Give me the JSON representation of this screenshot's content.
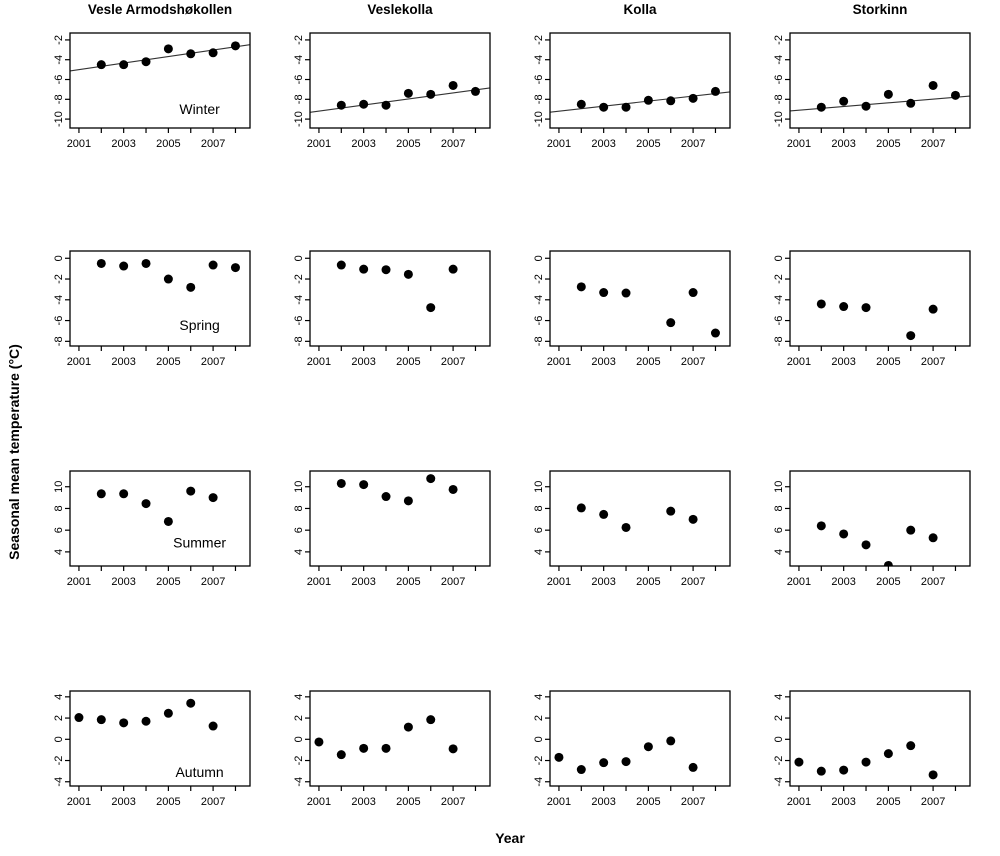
{
  "figure": {
    "xlabel": "Year",
    "ylabel": "Seasonal mean temperature (°C)"
  },
  "chart_data": {
    "type": "scatter",
    "layout": "4x4 small-multiples grid; columns are sites, rows are seasons; black filled points; regression lines in Winter row only",
    "point_color": "#000000",
    "trend_color": "#333333",
    "columns": [
      "Vesle Armodshøkollen",
      "Veslekolla",
      "Kolla",
      "Storkinn"
    ],
    "rows": [
      "Winter",
      "Spring",
      "Summer",
      "Autumn"
    ],
    "xlim": [
      2000.6,
      2008.65
    ],
    "x_ticks": [
      2001,
      2002,
      2003,
      2004,
      2005,
      2006,
      2007,
      2008
    ],
    "x_labeled_ticks": [
      2001,
      2003,
      2005,
      2007
    ],
    "x_tick_labels": [
      "2001",
      "2003",
      "2005",
      "2007"
    ],
    "row_axes": [
      {
        "season": "Winter",
        "ylim": [
          -10.9,
          -1.3
        ],
        "yticks": [
          -10,
          -8,
          -6,
          -4,
          -2
        ],
        "ytick_labels": [
          "-10",
          "-8",
          "-6",
          "-4",
          "-2"
        ]
      },
      {
        "season": "Spring",
        "ylim": [
          -8.45,
          0.7
        ],
        "yticks": [
          -8,
          -6,
          -4,
          -2,
          0
        ],
        "ytick_labels": [
          "-8",
          "-6",
          "-4",
          "-2",
          "0"
        ]
      },
      {
        "season": "Summer",
        "ylim": [
          2.7,
          11.45
        ],
        "yticks": [
          4,
          6,
          8,
          10
        ],
        "ytick_labels": [
          "4",
          "6",
          "8",
          "10"
        ]
      },
      {
        "season": "Autumn",
        "ylim": [
          -4.4,
          4.55
        ],
        "yticks": [
          -4,
          -2,
          0,
          2,
          4
        ],
        "ytick_labels": [
          "-4",
          "-2",
          "0",
          "2",
          "4"
        ]
      }
    ],
    "season_label_positions": [
      {
        "fx": 0.72,
        "fy": 0.8
      },
      {
        "fx": 0.72,
        "fy": 0.78
      },
      {
        "fx": 0.72,
        "fy": 0.75
      },
      {
        "fx": 0.72,
        "fy": 0.85
      }
    ],
    "panels": [
      {
        "season": "Winter",
        "site": "Vesle Armodshøkollen",
        "season_label": "Winter",
        "x": [
          2002,
          2003,
          2004,
          2005,
          2006,
          2007,
          2008
        ],
        "y": [
          -4.5,
          -4.5,
          -4.2,
          -2.9,
          -3.4,
          -3.3,
          -2.6
        ],
        "trend": {
          "x1": 2000.6,
          "y1": -5.13,
          "x2": 2008.65,
          "y2": -2.48
        }
      },
      {
        "season": "Winter",
        "site": "Veslekolla",
        "season_label": null,
        "x": [
          2002,
          2003,
          2004,
          2005,
          2006,
          2007,
          2008
        ],
        "y": [
          -8.6,
          -8.5,
          -8.6,
          -7.4,
          -7.5,
          -6.6,
          -7.2
        ],
        "trend": {
          "x1": 2000.6,
          "y1": -9.32,
          "x2": 2008.65,
          "y2": -6.85
        }
      },
      {
        "season": "Winter",
        "site": "Kolla",
        "season_label": null,
        "x": [
          2002,
          2003,
          2004,
          2005,
          2006,
          2007,
          2008
        ],
        "y": [
          -8.5,
          -8.8,
          -8.8,
          -8.1,
          -8.15,
          -7.9,
          -7.2
        ],
        "trend": {
          "x1": 2000.6,
          "y1": -9.3,
          "x2": 2008.65,
          "y2": -7.26
        }
      },
      {
        "season": "Winter",
        "site": "Storkinn",
        "season_label": null,
        "x": [
          2002,
          2003,
          2004,
          2005,
          2006,
          2007,
          2008
        ],
        "y": [
          -8.8,
          -8.2,
          -8.7,
          -7.5,
          -8.4,
          -6.6,
          -7.6
        ],
        "trend": {
          "x1": 2000.6,
          "y1": -9.18,
          "x2": 2008.65,
          "y2": -7.67
        }
      },
      {
        "season": "Spring",
        "site": "Vesle Armodshøkollen",
        "season_label": "Spring",
        "x": [
          2002,
          2003,
          2004,
          2005,
          2006,
          2007,
          2008
        ],
        "y": [
          -0.5,
          -0.75,
          -0.5,
          -2.0,
          -2.8,
          -0.65,
          -0.9
        ],
        "trend": null
      },
      {
        "season": "Spring",
        "site": "Veslekolla",
        "season_label": null,
        "x": [
          2002,
          2003,
          2004,
          2005,
          2006,
          2007
        ],
        "y": [
          -0.65,
          -1.05,
          -1.1,
          -1.55,
          -4.75,
          -1.05
        ],
        "trend": null
      },
      {
        "season": "Spring",
        "site": "Kolla",
        "season_label": null,
        "x": [
          2002,
          2003,
          2004,
          2006,
          2007,
          2008
        ],
        "y": [
          -2.75,
          -3.3,
          -3.35,
          -6.2,
          -3.3,
          -7.2
        ],
        "trend": null
      },
      {
        "season": "Spring",
        "site": "Storkinn",
        "season_label": null,
        "x": [
          2002,
          2003,
          2004,
          2006,
          2007
        ],
        "y": [
          -4.4,
          -4.65,
          -4.75,
          -7.45,
          -4.9
        ],
        "trend": null
      },
      {
        "season": "Summer",
        "site": "Vesle Armodshøkollen",
        "season_label": "Summer",
        "x": [
          2002,
          2003,
          2004,
          2005,
          2006,
          2007
        ],
        "y": [
          9.35,
          9.35,
          8.45,
          6.8,
          9.6,
          9.0
        ],
        "trend": null
      },
      {
        "season": "Summer",
        "site": "Veslekolla",
        "season_label": null,
        "x": [
          2002,
          2003,
          2004,
          2005,
          2006,
          2007
        ],
        "y": [
          10.3,
          10.2,
          9.1,
          8.7,
          10.75,
          9.75
        ],
        "trend": null
      },
      {
        "season": "Summer",
        "site": "Kolla",
        "season_label": null,
        "x": [
          2002,
          2003,
          2004,
          2006,
          2007
        ],
        "y": [
          8.05,
          7.45,
          6.25,
          7.75,
          7.0
        ],
        "trend": null
      },
      {
        "season": "Summer",
        "site": "Storkinn",
        "season_label": null,
        "x": [
          2002,
          2003,
          2004,
          2005,
          2006,
          2007
        ],
        "y": [
          6.4,
          5.65,
          4.65,
          2.75,
          6.0,
          5.3
        ],
        "trend": null
      },
      {
        "season": "Autumn",
        "site": "Vesle Armodshøkollen",
        "season_label": "Autumn",
        "x": [
          2001,
          2002,
          2003,
          2004,
          2005,
          2006,
          2007
        ],
        "y": [
          2.05,
          1.85,
          1.55,
          1.7,
          2.45,
          3.4,
          1.25
        ],
        "trend": null
      },
      {
        "season": "Autumn",
        "site": "Veslekolla",
        "season_label": null,
        "x": [
          2001,
          2002,
          2003,
          2004,
          2005,
          2006,
          2007
        ],
        "y": [
          -0.25,
          -1.45,
          -0.85,
          -0.85,
          1.15,
          1.85,
          -0.9
        ],
        "trend": null
      },
      {
        "season": "Autumn",
        "site": "Kolla",
        "season_label": null,
        "x": [
          2001,
          2002,
          2003,
          2004,
          2005,
          2006,
          2007
        ],
        "y": [
          -1.7,
          -2.85,
          -2.2,
          -2.1,
          -0.7,
          -0.15,
          -2.65
        ],
        "trend": null
      },
      {
        "season": "Autumn",
        "site": "Storkinn",
        "season_label": null,
        "x": [
          2001,
          2002,
          2003,
          2004,
          2005,
          2006,
          2007
        ],
        "y": [
          -2.15,
          -3.0,
          -2.9,
          -2.15,
          -1.35,
          -0.6,
          -3.35
        ],
        "trend": null
      }
    ]
  }
}
